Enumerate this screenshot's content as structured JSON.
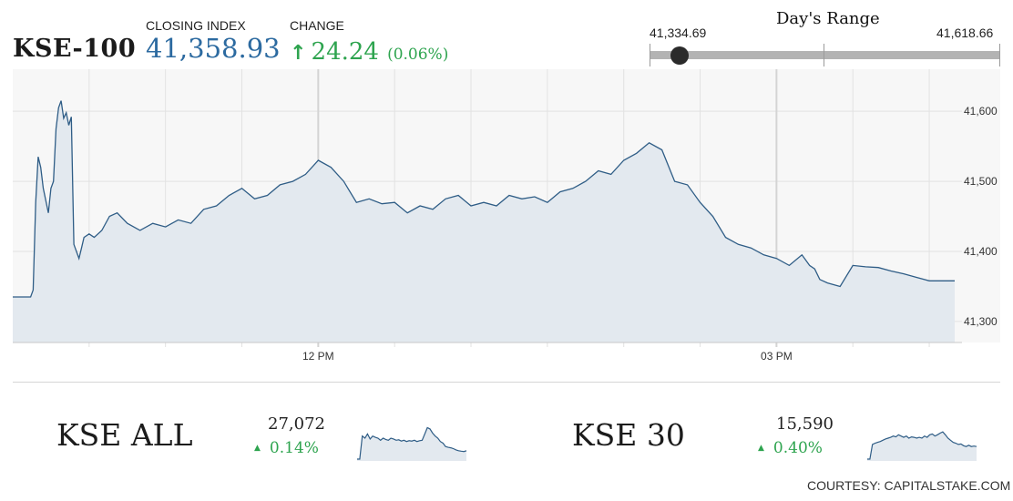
{
  "header": {
    "index_name": "KSE-100",
    "closing_label": "CLOSING INDEX",
    "closing_value": "41,358.93",
    "change_label": "CHANGE",
    "change_arrow": "↑",
    "change_value": "24.24",
    "change_pct": "(0.06%)"
  },
  "days_range": {
    "title": "Day's Range",
    "low": "41,334.69",
    "high": "41,618.66",
    "current": 41358.93
  },
  "colors": {
    "line": "#2f5d86",
    "fill": "#e3e9ef",
    "positive": "#2ea44f",
    "closing": "#2c6aa0"
  },
  "chart_data": [
    {
      "type": "area",
      "series_name": "KSE-100",
      "x_ticks": [
        "12 PM",
        "03 PM"
      ],
      "y_ticks": [
        "41,300",
        "41,400",
        "41,500",
        "41,600"
      ],
      "ylim": [
        41270,
        41660
      ],
      "grid": true,
      "x_minutes": [
        570,
        573,
        575,
        576,
        577,
        578,
        579,
        580,
        581,
        582,
        584,
        585,
        586,
        587,
        588,
        589,
        590,
        591,
        592,
        593,
        594,
        595,
        596,
        597,
        598,
        600,
        602,
        605,
        608,
        611,
        615,
        620,
        625,
        630,
        635,
        640,
        645,
        650,
        655,
        660,
        665,
        670,
        675,
        680,
        685,
        690,
        695,
        700,
        705,
        710,
        715,
        720,
        725,
        730,
        735,
        740,
        745,
        750,
        755,
        760,
        765,
        770,
        775,
        780,
        785,
        790,
        795,
        800,
        805,
        810,
        815,
        820,
        825,
        830,
        835,
        840,
        845,
        850,
        855,
        860,
        865,
        870,
        875,
        880,
        883,
        885,
        887,
        890,
        895,
        900,
        905,
        910,
        915,
        920,
        925,
        930,
        935,
        940
      ],
      "values": [
        41335,
        41335,
        41335,
        41335,
        41335,
        41345,
        41470,
        41535,
        41520,
        41490,
        41455,
        41490,
        41500,
        41575,
        41605,
        41615,
        41590,
        41598,
        41580,
        41592,
        41410,
        41400,
        41390,
        41405,
        41420,
        41425,
        41420,
        41430,
        41450,
        41455,
        41440,
        41430,
        41440,
        41435,
        41445,
        41440,
        41460,
        41465,
        41480,
        41490,
        41475,
        41480,
        41495,
        41500,
        41510,
        41530,
        41520,
        41500,
        41470,
        41475,
        41468,
        41470,
        41455,
        41465,
        41460,
        41475,
        41480,
        41465,
        41470,
        41465,
        41480,
        41475,
        41478,
        41470,
        41485,
        41490,
        41500,
        41515,
        41510,
        41530,
        41540,
        41555,
        41545,
        41500,
        41495,
        41470,
        41450,
        41420,
        41410,
        41405,
        41395,
        41390,
        41380,
        41395,
        41380,
        41375,
        41360,
        41355,
        41350,
        41380,
        41378,
        41377,
        41372,
        41368,
        41363,
        41358,
        41358,
        41358
      ]
    },
    {
      "type": "area",
      "series_name": "KSE ALL",
      "value_label": "27,072",
      "change_label": "0.14%",
      "values": [
        0.0,
        0.0,
        0.55,
        0.5,
        0.6,
        0.48,
        0.55,
        0.52,
        0.5,
        0.45,
        0.5,
        0.47,
        0.45,
        0.5,
        0.48,
        0.45,
        0.46,
        0.43,
        0.45,
        0.42,
        0.44,
        0.43,
        0.45,
        0.42,
        0.44,
        0.45,
        0.6,
        0.75,
        0.72,
        0.62,
        0.55,
        0.5,
        0.42,
        0.38,
        0.3,
        0.28,
        0.27,
        0.25,
        0.22,
        0.2,
        0.19,
        0.18,
        0.2
      ]
    },
    {
      "type": "area",
      "series_name": "KSE 30",
      "value_label": "15,590",
      "change_label": "0.40%",
      "values": [
        0.0,
        0.0,
        0.35,
        0.38,
        0.4,
        0.42,
        0.45,
        0.48,
        0.5,
        0.52,
        0.55,
        0.53,
        0.58,
        0.55,
        0.52,
        0.55,
        0.5,
        0.53,
        0.52,
        0.5,
        0.52,
        0.5,
        0.55,
        0.52,
        0.58,
        0.6,
        0.55,
        0.58,
        0.62,
        0.65,
        0.58,
        0.5,
        0.45,
        0.4,
        0.38,
        0.35,
        0.36,
        0.32,
        0.3,
        0.33,
        0.3,
        0.31,
        0.3
      ]
    }
  ],
  "bottom": {
    "kse_all": {
      "name": "KSE ALL",
      "value": "27,072",
      "tri": "▲",
      "change": "0.14%"
    },
    "kse_30": {
      "name": "KSE 30",
      "value": "15,590",
      "tri": "▲",
      "change": "0.40%"
    }
  },
  "footer": {
    "courtesy": "COURTESY: CAPITALSTAKE.COM"
  }
}
